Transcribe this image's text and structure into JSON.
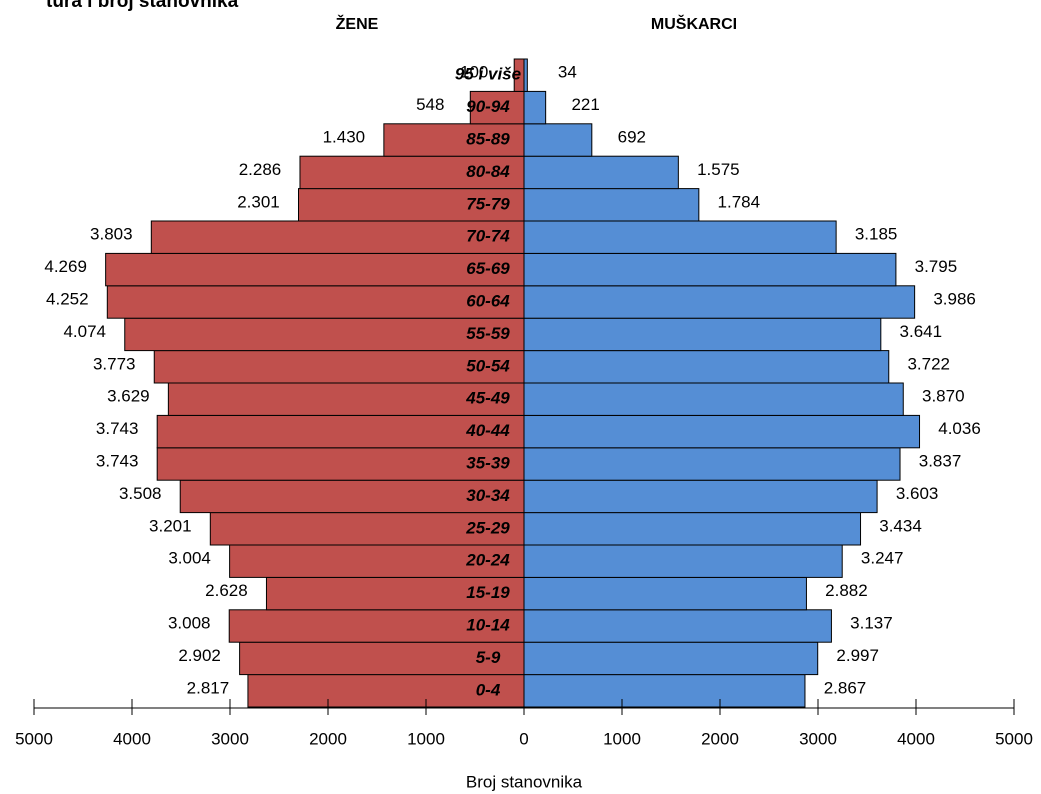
{
  "chart_data": {
    "type": "pyramid",
    "title": "tura i broj stanovnika",
    "left_header": "ŽENE",
    "right_header": "MUŠKARCI",
    "x_label": "Broj stanovnika",
    "categories": [
      "0-4",
      "5-9",
      "10-14",
      "15-19",
      "20-24",
      "25-29",
      "30-34",
      "35-39",
      "40-44",
      "45-49",
      "50-54",
      "55-59",
      "60-64",
      "65-69",
      "70-74",
      "75-79",
      "80-84",
      "85-89",
      "90-94",
      "95 i više"
    ],
    "series": [
      {
        "name": "ŽENE",
        "side": "left",
        "color": "#c0504d",
        "values": [
          2817,
          2902,
          3008,
          2628,
          3004,
          3201,
          3508,
          3743,
          3743,
          3629,
          3773,
          4074,
          4252,
          4269,
          3803,
          2301,
          2286,
          1430,
          548,
          100
        ],
        "value_labels": [
          "2.817",
          "2.902",
          "3.008",
          "2.628",
          "3.004",
          "3.201",
          "3.508",
          "3.743",
          "3.743",
          "3.629",
          "3.773",
          "4.074",
          "4.252",
          "4.269",
          "3.803",
          "2.301",
          "2.286",
          "1.430",
          "548",
          "100"
        ]
      },
      {
        "name": "MUŠKARCI",
        "side": "right",
        "color": "#558ed5",
        "values": [
          2867,
          2997,
          3137,
          2882,
          3247,
          3434,
          3603,
          3837,
          4036,
          3870,
          3722,
          3641,
          3986,
          3795,
          3185,
          1784,
          1575,
          692,
          221,
          34
        ],
        "value_labels": [
          "2.867",
          "2.997",
          "3.137",
          "2.882",
          "3.247",
          "3.434",
          "3.603",
          "3.837",
          "4.036",
          "3.870",
          "3.722",
          "3.641",
          "3.986",
          "3.795",
          "3.185",
          "1.784",
          "1.575",
          "692",
          "221",
          "34"
        ]
      }
    ],
    "xlim": [
      -5000,
      5000
    ],
    "xticks": [
      {
        "value": -5000,
        "label": "5000"
      },
      {
        "value": -4000,
        "label": "4000"
      },
      {
        "value": -3000,
        "label": "3000"
      },
      {
        "value": -2000,
        "label": "2000"
      },
      {
        "value": -1000,
        "label": "1000"
      },
      0,
      1000,
      2000,
      3000,
      4000,
      5000
    ]
  }
}
